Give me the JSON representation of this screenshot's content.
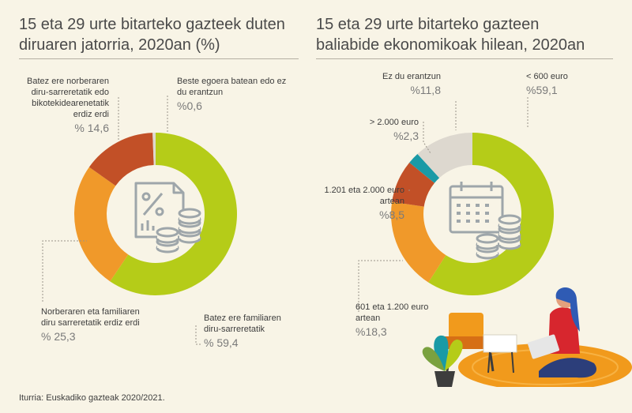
{
  "source": "Iturria: Euskadiko gazteak 2020/2021.",
  "chart_data": [
    {
      "type": "pie",
      "donut": true,
      "title": "15 eta 29 urte bitarteko gazteek duten diruaren jatorria, 2020an (%)",
      "center_icon": "percent-document-coins-icon",
      "slices": [
        {
          "label": "Batez ere familiaren diru-sarreretatik",
          "value": 59.4,
          "value_text": "% 59,4",
          "color": "#b5cc18"
        },
        {
          "label": "Norberaren eta familiaren diru sarreretatik erdiz erdi",
          "value": 25.3,
          "value_text": "% 25,3",
          "color": "#f0992a"
        },
        {
          "label": "Batez ere norberaren diru-sarreretatik edo bikotekidearenetatik erdiz erdi",
          "value": 14.6,
          "value_text": "% 14,6",
          "color": "#c25027"
        },
        {
          "label": "Beste egoera batean edo ez du erantzun",
          "value": 0.6,
          "value_text": "%0,6",
          "color": "#ddd8cf"
        }
      ]
    },
    {
      "type": "pie",
      "donut": true,
      "title": "15 eta 29 urte bitarteko gazteen baliabide ekonomikoak hilean, 2020an",
      "center_icon": "calendar-coins-icon",
      "slices": [
        {
          "label": "< 600 euro",
          "value": 59.1,
          "value_text": "%59,1",
          "color": "#b5cc18"
        },
        {
          "label": "601 eta 1.200 euro artean",
          "value": 18.3,
          "value_text": "%18,3",
          "color": "#f0992a"
        },
        {
          "label": "1.201 eta 2.000 euro artean",
          "value": 8.5,
          "value_text": "%8,5",
          "color": "#c25027"
        },
        {
          "label": "> 2.000 euro",
          "value": 2.3,
          "value_text": "%2,3",
          "color": "#1a9aa6"
        },
        {
          "label": "Ez du erantzun",
          "value": 11.8,
          "value_text": "%11,8",
          "color": "#ddd8cf"
        }
      ]
    }
  ]
}
